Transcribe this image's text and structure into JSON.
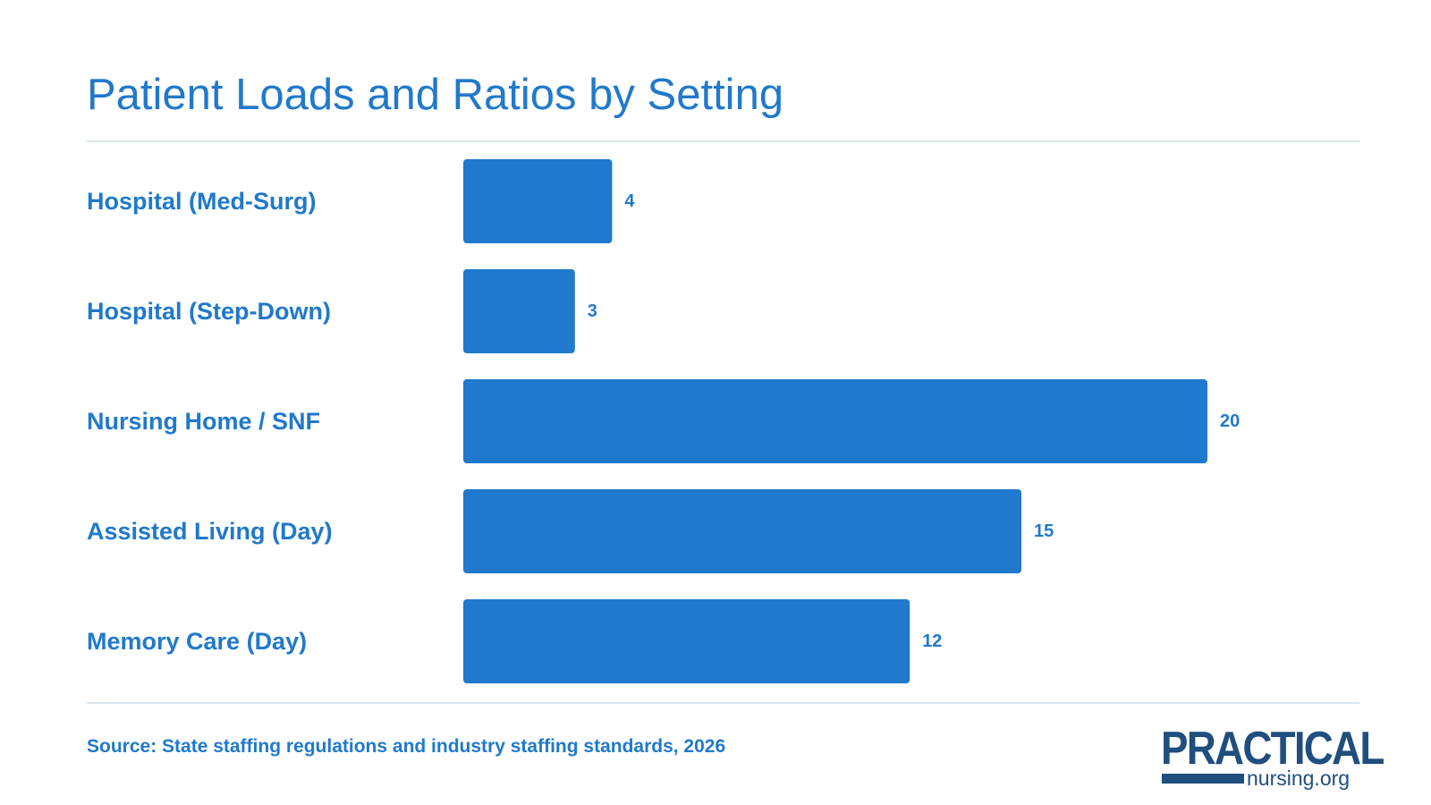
{
  "colors": {
    "accent": "#2079cc",
    "text": "#2079cc",
    "rule": "#dde6ec",
    "logo": "#1f4e7f",
    "background": "#ffffff"
  },
  "chart_data": {
    "type": "bar",
    "orientation": "horizontal",
    "title": "Patient Loads and Ratios by Setting",
    "categories": [
      "Hospital (Med-Surg)",
      "Hospital (Step-Down)",
      "Nursing Home / SNF",
      "Assisted Living (Day)",
      "Memory Care (Day)"
    ],
    "values": [
      4,
      3,
      20,
      15,
      12
    ],
    "xlabel": "",
    "ylabel": "",
    "xlim": [
      0,
      20
    ],
    "grid": false,
    "data_labels": true
  },
  "footer": {
    "source": "Source: State staffing regulations and industry staffing standards, 2026"
  },
  "logo": {
    "word": "PRACTICAL",
    "sub": "nursing.org"
  }
}
